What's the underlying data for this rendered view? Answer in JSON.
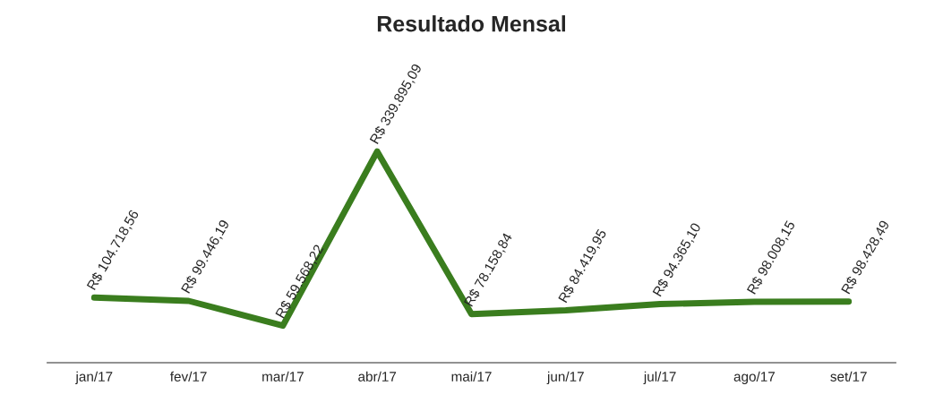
{
  "chart_data": {
    "type": "line",
    "title": "Resultado Mensal",
    "categories": [
      "jan/17",
      "fev/17",
      "mar/17",
      "abr/17",
      "mai/17",
      "jun/17",
      "jul/17",
      "ago/17",
      "set/17"
    ],
    "series": [
      {
        "color": "#3a7d1e",
        "values": [
          104718.56,
          99446.19,
          59568.22,
          339895.09,
          78158.84,
          84419.95,
          94365.1,
          98008.15,
          98428.49
        ],
        "value_labels": [
          "R$ 104.718,56",
          "R$ 99.446,19",
          "R$ 59.568,22",
          "R$ 339.895,09",
          "R$ 78.158,84",
          "R$ 84.419,95",
          "R$ 94.365,10",
          "R$ 98.008,15",
          "R$ 98.428,49"
        ]
      }
    ],
    "grid": false,
    "legend": false,
    "marker": "none",
    "line_style": "solid",
    "tick_labels": "x"
  }
}
